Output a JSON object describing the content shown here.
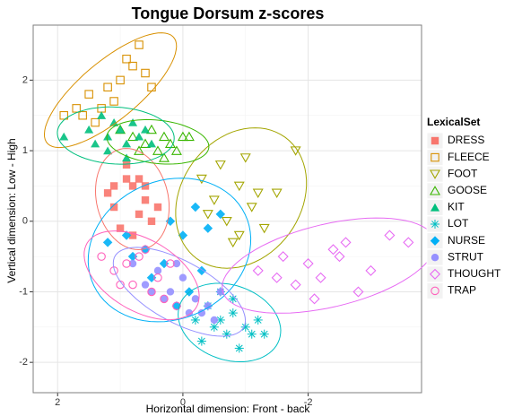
{
  "chart_data": {
    "type": "scatter",
    "title": "Tongue Dorsum z-scores",
    "x_label": "Horizontal dimension: Front - back",
    "y_label": "Vertical dimension: Low - High",
    "legend_title": "LexicalSet",
    "legend": "right",
    "grid": true,
    "ellipses": true,
    "xlim": [
      2.39,
      -3.81
    ],
    "xticks": [
      2,
      0,
      -2
    ],
    "ylim": [
      -2.43,
      2.78
    ],
    "yticks": [
      -2,
      -1,
      0,
      1,
      2
    ],
    "series": [
      {
        "name": "DRESS",
        "color": "#F8766D",
        "marker": "square-filled",
        "x": [
          1.2,
          1.1,
          0.9,
          0.8,
          0.7,
          0.6,
          1.0,
          0.5,
          0.8,
          0.9,
          0.6,
          0.4,
          1.1,
          0.7
        ],
        "values": [
          0.4,
          0.2,
          0.6,
          0.5,
          0.1,
          0.3,
          -0.1,
          0.0,
          -0.2,
          0.8,
          0.5,
          0.2,
          0.5,
          0.6
        ]
      },
      {
        "name": "FLEECE",
        "color": "#D89000",
        "marker": "square-open",
        "x": [
          1.9,
          1.7,
          1.5,
          1.4,
          1.2,
          1.0,
          0.9,
          0.8,
          0.7,
          1.3,
          1.1,
          0.6,
          1.6,
          0.5
        ],
        "values": [
          1.5,
          1.6,
          1.8,
          1.4,
          1.9,
          2.0,
          2.3,
          2.2,
          2.5,
          1.6,
          1.7,
          2.1,
          1.5,
          1.9
        ]
      },
      {
        "name": "FOOT",
        "color": "#A3A500",
        "marker": "triangle-down-open",
        "x": [
          -0.3,
          -0.5,
          -0.7,
          -0.9,
          -1.1,
          -1.3,
          -1.5,
          -0.6,
          -0.8,
          -1.0,
          -1.2,
          -1.8,
          -0.4,
          -0.9
        ],
        "values": [
          0.6,
          0.3,
          0.0,
          0.5,
          0.2,
          -0.1,
          0.4,
          0.8,
          -0.3,
          0.9,
          0.4,
          1.0,
          0.1,
          -0.2
        ]
      },
      {
        "name": "GOOSE",
        "color": "#39B600",
        "marker": "triangle-open",
        "x": [
          1.0,
          0.8,
          0.6,
          0.5,
          0.4,
          0.3,
          0.2,
          0.1,
          0.0,
          0.7,
          0.3,
          -0.1
        ],
        "values": [
          1.3,
          1.2,
          1.1,
          1.3,
          1.0,
          1.2,
          1.1,
          1.0,
          1.2,
          1.0,
          0.9,
          1.2
        ]
      },
      {
        "name": "KIT",
        "color": "#00BF7D",
        "marker": "triangle-filled",
        "x": [
          1.9,
          1.5,
          1.4,
          1.3,
          1.2,
          1.1,
          1.0,
          0.9,
          0.8,
          0.7,
          0.6,
          0.5,
          1.2,
          0.9
        ],
        "values": [
          1.2,
          1.3,
          1.1,
          1.5,
          1.2,
          1.4,
          1.3,
          1.1,
          1.4,
          1.2,
          1.3,
          1.1,
          1.0,
          0.9
        ]
      },
      {
        "name": "LOT",
        "color": "#00BFC4",
        "marker": "asterisk",
        "x": [
          -0.2,
          -0.4,
          -0.5,
          -0.6,
          -0.7,
          -0.8,
          -0.9,
          -1.0,
          -1.1,
          -1.2,
          -1.3,
          -0.3,
          -0.8,
          -0.6
        ],
        "values": [
          -1.4,
          -1.2,
          -1.5,
          -1.0,
          -1.6,
          -1.3,
          -1.8,
          -1.5,
          -1.6,
          -1.4,
          -1.6,
          -1.7,
          -1.1,
          -1.4
        ]
      },
      {
        "name": "NURSE",
        "color": "#00B0F6",
        "marker": "diamond-filled",
        "x": [
          1.2,
          0.9,
          0.6,
          0.2,
          0.0,
          -0.2,
          -0.4,
          -0.6,
          0.5,
          0.3,
          -0.1,
          0.1,
          0.8,
          -0.3
        ],
        "values": [
          -0.3,
          -0.2,
          -0.4,
          0.0,
          -0.2,
          0.2,
          -0.1,
          0.1,
          -0.8,
          -0.6,
          -1.0,
          -1.2,
          -0.5,
          -0.7
        ]
      },
      {
        "name": "STRUT",
        "color": "#9590FF",
        "marker": "circle-filled",
        "x": [
          0.8,
          0.6,
          0.4,
          0.2,
          0.0,
          -0.2,
          -0.3,
          -0.4,
          -0.5,
          0.3,
          0.1,
          -0.6,
          0.5,
          -0.1
        ],
        "values": [
          -0.6,
          -0.9,
          -0.7,
          -1.0,
          -0.8,
          -1.1,
          -1.3,
          -1.2,
          -1.4,
          -1.1,
          -0.6,
          -1.0,
          -1.0,
          -1.3
        ]
      },
      {
        "name": "THOUGHT",
        "color": "#E76BF3",
        "marker": "diamond-open",
        "x": [
          -1.2,
          -1.6,
          -1.8,
          -2.0,
          -2.2,
          -2.4,
          -2.6,
          -2.8,
          -3.0,
          -3.3,
          -3.6,
          -2.1,
          -2.5,
          -1.5
        ],
        "values": [
          -0.7,
          -0.5,
          -0.9,
          -0.6,
          -0.8,
          -0.4,
          -0.3,
          -1.0,
          -0.7,
          -0.2,
          -0.3,
          -1.1,
          -0.5,
          -0.8
        ]
      },
      {
        "name": "TRAP",
        "color": "#FF62BC",
        "marker": "circle-open",
        "x": [
          1.3,
          1.1,
          0.9,
          0.8,
          0.6,
          0.5,
          0.4,
          0.3,
          0.1,
          0.7,
          1.0,
          0.2
        ],
        "values": [
          -0.5,
          -0.7,
          -0.6,
          -0.9,
          -0.4,
          -1.0,
          -0.8,
          -1.1,
          -1.2,
          -0.5,
          -0.9,
          -0.6
        ]
      }
    ]
  }
}
